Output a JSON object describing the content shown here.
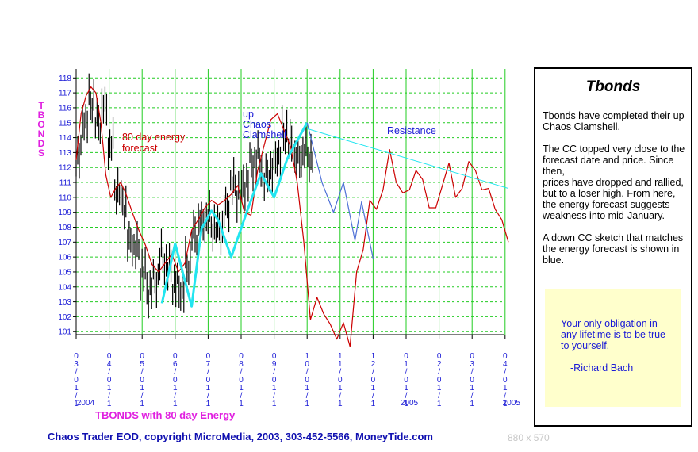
{
  "chart_data": {
    "type": "bar",
    "ytitle": "TBONDS",
    "subtitle": "TBONDS with 80 day Energy",
    "ylim": [
      100.8,
      118.6
    ],
    "y_ticks": [
      101,
      102,
      103,
      104,
      105,
      106,
      107,
      108,
      109,
      110,
      111,
      112,
      113,
      114,
      115,
      116,
      117,
      118
    ],
    "x_tick_labels": [
      "03/01",
      "04/01",
      "05/01",
      "06/01",
      "07/01",
      "08/01",
      "09/01",
      "10/01",
      "11/01",
      "12/01",
      "01/01",
      "02/01",
      "03/01",
      "04/01"
    ],
    "year_labels": [
      "2004",
      "2005",
      "2005"
    ],
    "grid": true,
    "annotations": {
      "energy_label": "80 day energy\nforecast",
      "clamshell_label": "up\nChaos\nClamshell",
      "resistance_label": "Resistance"
    },
    "price_bars": [
      {
        "i": 0,
        "v": 112.8
      },
      {
        "i": 1,
        "v": 115.2
      },
      {
        "i": 2,
        "v": 116.4
      },
      {
        "i": 3,
        "v": 115.0
      },
      {
        "i": 4,
        "v": 116.0
      },
      {
        "i": 5,
        "v": 113.5
      },
      {
        "i": 6,
        "v": 110.5
      },
      {
        "i": 7,
        "v": 109.5
      },
      {
        "i": 8,
        "v": 107.0
      },
      {
        "i": 9,
        "v": 106.5
      },
      {
        "i": 10,
        "v": 105.0
      },
      {
        "i": 11,
        "v": 103.8
      },
      {
        "i": 12,
        "v": 104.5
      },
      {
        "i": 13,
        "v": 106.0
      },
      {
        "i": 14,
        "v": 105.3
      },
      {
        "i": 15,
        "v": 104.2
      },
      {
        "i": 16,
        "v": 103.8
      },
      {
        "i": 17,
        "v": 105.5
      },
      {
        "i": 18,
        "v": 107.5
      },
      {
        "i": 19,
        "v": 108.3
      },
      {
        "i": 20,
        "v": 108.6
      },
      {
        "i": 21,
        "v": 108.0
      },
      {
        "i": 22,
        "v": 107.8
      },
      {
        "i": 23,
        "v": 109.3
      },
      {
        "i": 24,
        "v": 110.8
      },
      {
        "i": 25,
        "v": 110.2
      },
      {
        "i": 26,
        "v": 111.0
      },
      {
        "i": 27,
        "v": 112.3
      },
      {
        "i": 28,
        "v": 112.6
      },
      {
        "i": 29,
        "v": 111.3
      },
      {
        "i": 30,
        "v": 111.8
      },
      {
        "i": 31,
        "v": 112.8
      },
      {
        "i": 32,
        "v": 114.3
      },
      {
        "i": 33,
        "v": 113.6
      },
      {
        "i": 34,
        "v": 112.5
      },
      {
        "i": 35,
        "v": 113.0
      },
      {
        "i": 36,
        "v": 112.7
      }
    ],
    "series": [
      {
        "name": "80 day energy",
        "color": "#cc0000",
        "x": [
          0,
          0.15,
          0.3,
          0.45,
          0.6,
          0.75,
          0.9,
          1.05,
          1.2,
          1.35,
          1.5,
          1.7,
          1.9,
          2.1,
          2.3,
          2.5,
          2.7,
          2.9,
          3.1,
          3.3,
          3.5,
          3.7,
          3.9,
          4.1,
          4.3,
          4.5,
          4.7,
          4.9,
          5.1,
          5.3,
          5.5,
          5.7,
          5.9,
          6.1,
          6.3,
          6.5,
          6.7,
          6.9,
          7.1,
          7.3,
          7.5,
          7.7,
          7.9,
          8.1,
          8.3,
          8.5,
          8.7,
          8.9,
          9.1,
          9.3,
          9.5,
          9.7,
          9.9,
          10.1,
          10.3,
          10.5,
          10.7,
          10.9,
          11.1,
          11.3,
          11.5,
          11.7,
          11.9,
          12.1,
          12.3,
          12.5,
          12.7,
          12.9,
          13.1
        ],
        "values": [
          112.5,
          115.6,
          116.8,
          117.4,
          117.0,
          115.0,
          111.5,
          110.0,
          110.6,
          111.0,
          110.3,
          109.0,
          107.8,
          106.8,
          105.5,
          105.0,
          105.6,
          106.2,
          105.0,
          105.6,
          107.8,
          108.5,
          109.3,
          109.8,
          109.5,
          109.8,
          110.2,
          110.8,
          109.0,
          108.8,
          111.8,
          113.5,
          115.2,
          115.6,
          114.5,
          113.4,
          111.0,
          107.0,
          101.8,
          103.3,
          102.2,
          101.5,
          100.5,
          101.6,
          100.0,
          105.0,
          106.5,
          109.8,
          109.2,
          110.5,
          113.2,
          111.0,
          110.3,
          110.5,
          111.8,
          111.2,
          109.3,
          109.3,
          110.8,
          112.3,
          110.0,
          110.6,
          112.4,
          111.8,
          110.5,
          110.6,
          109.2,
          108.5,
          107.0
        ],
        "values_note": "x in months since 03/01/2004"
      },
      {
        "name": "up Chaos Clamshell",
        "color": "#22e5f0",
        "x": [
          2.6,
          3.0,
          3.5,
          3.8,
          4.1,
          4.3,
          4.7,
          5.2,
          5.6,
          6.0,
          6.4,
          7.0
        ],
        "values": [
          102.9,
          106.9,
          102.7,
          107.9,
          109.1,
          108.5,
          106.0,
          109.2,
          111.6,
          110.0,
          112.6,
          115.0
        ]
      },
      {
        "name": "down CC sketch",
        "color": "#4d6fd6",
        "x": [
          7.0,
          7.45,
          7.8,
          8.1,
          8.45,
          8.65,
          9.0
        ],
        "values": [
          115.0,
          111.0,
          109.0,
          111.0,
          107.1,
          109.7,
          105.9
        ]
      },
      {
        "name": "Resistance",
        "color": "#22e5f0",
        "x": [
          7.0,
          13.1
        ],
        "values": [
          114.6,
          110.6
        ]
      }
    ]
  },
  "panel": {
    "title": "Tbonds",
    "body": "Tbonds have completed their up Chaos Clamshell.\n\nThe CC topped very close to the forecast date and price. Since then,\nprices have dropped and rallied, but to a loser high. From here, the energy forecast suggests weakness into mid-January.\n\nA down CC sketch that matches the energy forecast is shown in blue.",
    "quote": "Your only obligation in any lifetime is to be true to yourself.",
    "quote_author": "-Richard Bach"
  },
  "footer": {
    "credit": "Chaos Trader EOD, copyright MicroMedia, 2003, 303-452-5566, MoneyTide.com",
    "dims": "880 x 570"
  },
  "colors": {
    "grid": "#22cc22",
    "axis": "#000000",
    "tick_label": "#1a1ad6",
    "ytitle": "#e020e0",
    "bars": "#000000"
  }
}
